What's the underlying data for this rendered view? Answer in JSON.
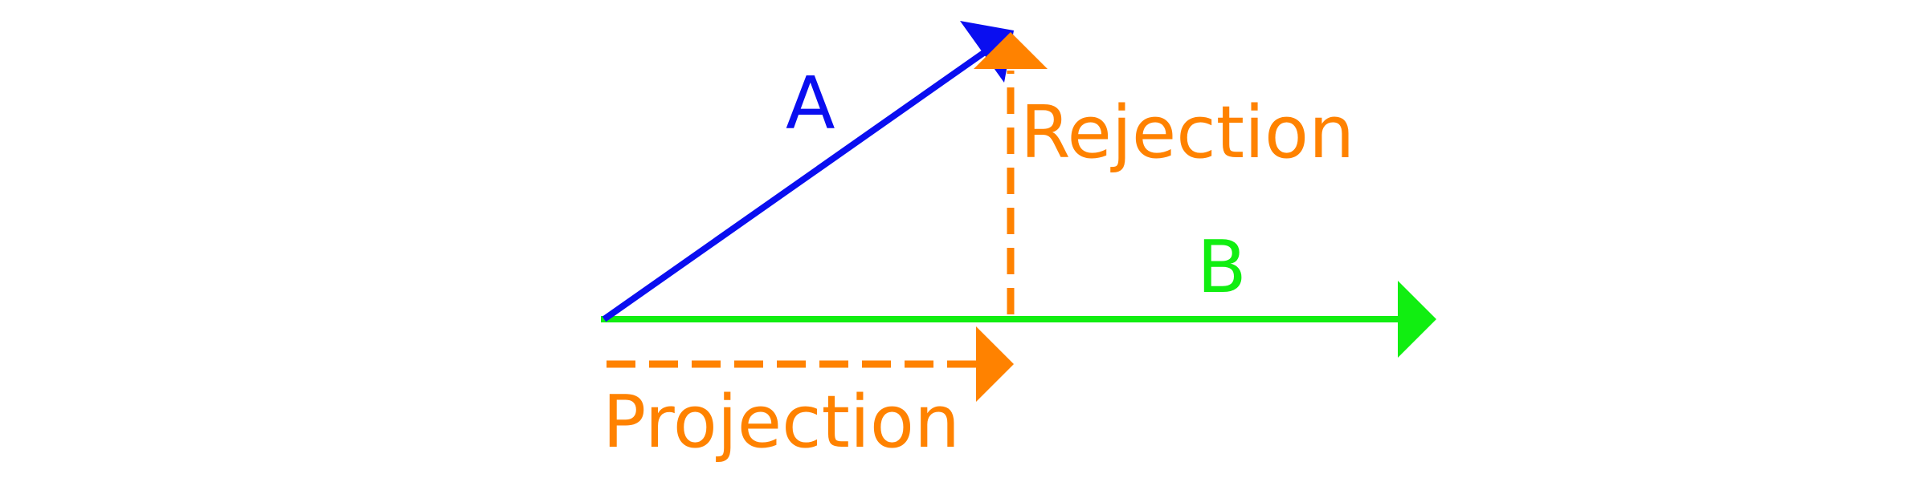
{
  "labels": {
    "vector_a": "A",
    "vector_b": "B",
    "rejection": "Rejection",
    "projection": "Projection"
  },
  "colors": {
    "vector_a": "#0a0ef0",
    "vector_b": "#11ee11",
    "projection": "#ff8200",
    "rejection": "#ff8200",
    "background": "#ffffff"
  }
}
